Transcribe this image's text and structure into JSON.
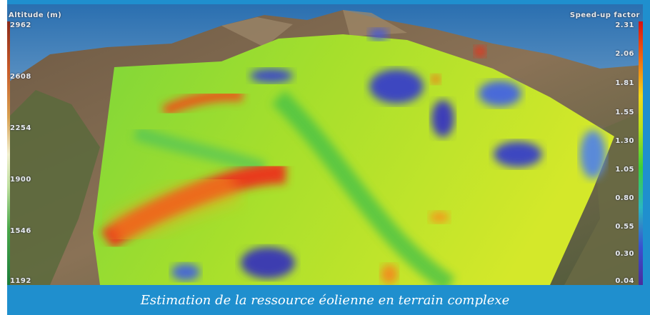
{
  "altitude_legend": {
    "title": "Altitude (m)",
    "ticks": [
      "2962",
      "2608",
      "2254",
      "1900",
      "1546",
      "1192"
    ]
  },
  "speedup_legend": {
    "title": "Speed-up factor",
    "ticks": [
      "2.31",
      "2.06",
      "1.81",
      "1.55",
      "1.30",
      "1.05",
      "0.80",
      "0.55",
      "0.30",
      "0.04"
    ]
  },
  "caption": "Estimation de la ressource éolienne en terrain complexe",
  "colors": {
    "frame": "#1f8fce",
    "sky_top": "#2a6fb0",
    "sky_bottom": "#cfe0ea",
    "terrain_base": "#b8e02a",
    "high": "#e8321a",
    "low": "#3a3ab8"
  }
}
